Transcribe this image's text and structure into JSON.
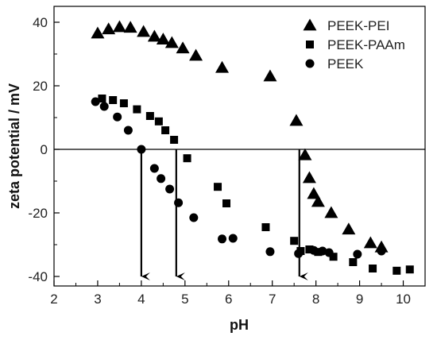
{
  "chart_data": {
    "type": "scatter",
    "xlabel": "pH",
    "ylabel": "zeta potential / mV",
    "xlim": [
      2,
      10.5
    ],
    "ylim": [
      -43,
      45
    ],
    "xticks": [
      "2",
      "3",
      "4",
      "5",
      "6",
      "7",
      "8",
      "9",
      "10"
    ],
    "yticks": [
      "-40",
      "-20",
      "0",
      "20",
      "40"
    ],
    "grid": false,
    "legend_position": "top-right",
    "zero_line": true,
    "series": [
      {
        "name": "PEEK-PEI",
        "marker": "triangle",
        "points": [
          [
            3.0,
            36.5
          ],
          [
            3.25,
            37.8
          ],
          [
            3.5,
            38.5
          ],
          [
            3.75,
            38.3
          ],
          [
            4.05,
            37.0
          ],
          [
            4.3,
            35.5
          ],
          [
            4.5,
            34.6
          ],
          [
            4.7,
            33.5
          ],
          [
            4.95,
            31.8
          ],
          [
            5.25,
            29.5
          ],
          [
            5.85,
            25.7
          ],
          [
            6.95,
            23.0
          ],
          [
            7.55,
            9.0
          ],
          [
            7.75,
            -1.8
          ],
          [
            7.85,
            -9.0
          ],
          [
            7.95,
            -14.0
          ],
          [
            8.05,
            -16.5
          ],
          [
            8.35,
            -20.0
          ],
          [
            8.75,
            -25.2
          ],
          [
            9.25,
            -29.5
          ],
          [
            9.5,
            -30.8
          ]
        ]
      },
      {
        "name": "PEEK-PAAm",
        "marker": "square",
        "points": [
          [
            3.1,
            16.0
          ],
          [
            3.35,
            15.5
          ],
          [
            3.6,
            14.5
          ],
          [
            3.9,
            12.6
          ],
          [
            4.2,
            10.5
          ],
          [
            4.4,
            8.8
          ],
          [
            4.55,
            6.0
          ],
          [
            4.75,
            3.0
          ],
          [
            5.05,
            -2.8
          ],
          [
            5.75,
            -11.8
          ],
          [
            5.95,
            -17.0
          ],
          [
            6.85,
            -24.5
          ],
          [
            7.5,
            -28.8
          ],
          [
            7.65,
            -32.0
          ],
          [
            7.85,
            -31.5
          ],
          [
            8.05,
            -32.3
          ],
          [
            8.4,
            -33.8
          ],
          [
            8.85,
            -35.5
          ],
          [
            9.3,
            -37.5
          ],
          [
            9.85,
            -38.2
          ],
          [
            10.15,
            -37.8
          ]
        ]
      },
      {
        "name": "PEEK",
        "marker": "circle",
        "points": [
          [
            2.95,
            15.0
          ],
          [
            3.15,
            13.5
          ],
          [
            3.45,
            10.2
          ],
          [
            3.7,
            6.0
          ],
          [
            4.0,
            0.0
          ],
          [
            4.3,
            -6.0
          ],
          [
            4.45,
            -9.2
          ],
          [
            4.65,
            -12.5
          ],
          [
            4.85,
            -16.8
          ],
          [
            5.2,
            -21.5
          ],
          [
            5.85,
            -28.2
          ],
          [
            6.1,
            -28.0
          ],
          [
            6.95,
            -32.2
          ],
          [
            7.6,
            -32.8
          ],
          [
            7.95,
            -31.8
          ],
          [
            8.15,
            -32.0
          ],
          [
            8.3,
            -32.5
          ],
          [
            8.95,
            -33.0
          ],
          [
            9.5,
            -32.0
          ]
        ]
      }
    ],
    "arrows": [
      {
        "x": 4.0,
        "y_from": 0,
        "y_to": -40
      },
      {
        "x": 4.8,
        "y_from": 0,
        "y_to": -40
      },
      {
        "x": 7.62,
        "y_from": 0,
        "y_to": -40
      }
    ]
  }
}
